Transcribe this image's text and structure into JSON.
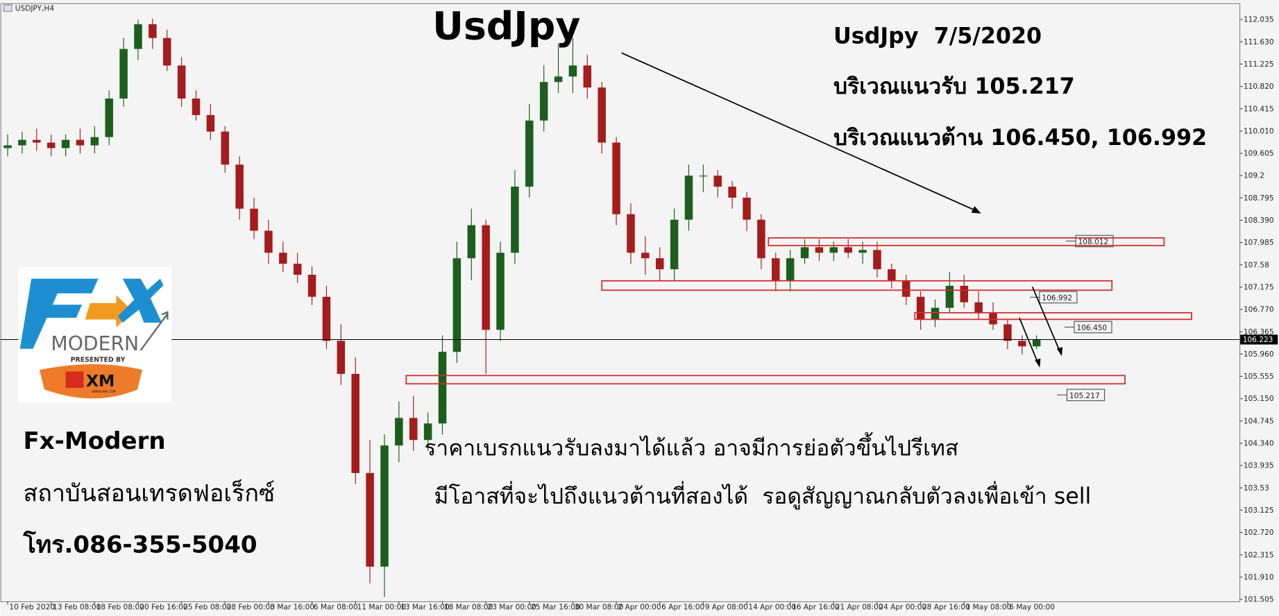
{
  "chart_data": {
    "type": "candlestick",
    "symbol": "USDJPY,H4",
    "title": "UsdJpy",
    "categories": [
      "10 Feb 2020",
      null,
      null,
      "13 Feb 08:00",
      null,
      null,
      "18 Feb 08:00",
      null,
      null,
      "20 Feb 16:00",
      null,
      null,
      "25 Feb 08:00",
      null,
      null,
      "28 Feb 00:00",
      null,
      null,
      "3 Mar 16:00",
      null,
      null,
      "6 Mar 08:00",
      null,
      null,
      "11 Mar 00:00",
      null,
      null,
      "13 Mar 16:00",
      null,
      null,
      "18 Mar 08:00",
      null,
      null,
      "23 Mar 00:00",
      null,
      null,
      "25 Mar 16:00",
      null,
      null,
      "30 Mar 08:00",
      null,
      null,
      "2 Apr 00:00",
      null,
      null,
      "6 Apr 16:00",
      null,
      null,
      "9 Apr 08:00",
      null,
      null,
      "14 Apr 00:00",
      null,
      null,
      "16 Apr 16:00",
      null,
      null,
      "21 Apr 08:00",
      null,
      null,
      "24 Apr 00:00",
      null,
      null,
      "28 Apr 16:00",
      null,
      null,
      "1 May 08:00",
      null,
      null,
      "6 May 00:00",
      null,
      null
    ],
    "open": [
      109.7,
      109.75,
      109.85,
      109.8,
      109.7,
      109.85,
      109.75,
      109.9,
      110.6,
      111.5,
      111.95,
      111.7,
      111.2,
      110.6,
      110.3,
      110.0,
      109.4,
      108.6,
      108.2,
      107.8,
      107.6,
      107.4,
      107.0,
      106.2,
      105.6,
      103.8,
      102.1,
      104.3,
      104.8,
      104.4,
      104.7,
      106.0,
      107.7,
      108.3,
      106.4,
      107.8,
      109.0,
      110.2,
      110.9,
      111.0,
      111.2,
      110.8,
      109.8,
      108.5,
      107.8,
      107.7,
      107.5,
      108.4,
      109.2,
      109.2,
      109.0,
      108.8,
      108.4,
      107.7,
      107.3,
      107.7,
      107.9,
      107.8,
      107.9,
      107.8,
      107.85,
      107.5,
      107.3,
      107.0,
      106.6,
      106.8,
      107.2,
      106.9,
      106.7,
      106.5,
      106.2,
      106.1
    ],
    "high": [
      109.95,
      110.0,
      110.05,
      109.95,
      109.95,
      110.05,
      110.1,
      110.75,
      111.7,
      112.03,
      112.05,
      111.85,
      111.35,
      110.75,
      110.5,
      110.1,
      109.55,
      108.8,
      108.4,
      108.0,
      107.8,
      107.55,
      107.2,
      106.5,
      105.9,
      104.4,
      104.5,
      105.1,
      105.2,
      104.9,
      106.3,
      108.0,
      108.6,
      108.4,
      108.0,
      109.3,
      110.5,
      111.2,
      111.6,
      111.7,
      111.4,
      110.9,
      109.9,
      108.7,
      108.1,
      107.9,
      108.6,
      109.4,
      109.4,
      109.3,
      109.1,
      108.9,
      108.5,
      107.8,
      107.85,
      108.05,
      108.05,
      108.0,
      108.05,
      108.0,
      108.0,
      107.6,
      107.4,
      107.1,
      106.95,
      107.45,
      107.4,
      107.1,
      106.9,
      106.6,
      106.3,
      106.3
    ],
    "low": [
      109.55,
      109.6,
      109.65,
      109.55,
      109.55,
      109.6,
      109.6,
      109.75,
      110.45,
      111.3,
      111.5,
      111.1,
      110.45,
      110.2,
      109.85,
      109.25,
      108.4,
      108.05,
      107.6,
      107.45,
      107.25,
      106.85,
      106.05,
      105.4,
      103.6,
      101.8,
      101.55,
      104.0,
      104.2,
      104.2,
      104.5,
      105.8,
      107.3,
      105.6,
      106.2,
      107.6,
      108.8,
      110.0,
      110.7,
      110.7,
      110.6,
      109.6,
      108.3,
      107.6,
      107.4,
      107.3,
      107.3,
      108.2,
      108.9,
      108.8,
      108.6,
      108.2,
      107.5,
      107.1,
      107.1,
      107.6,
      107.65,
      107.65,
      107.7,
      107.6,
      107.35,
      107.15,
      106.85,
      106.4,
      106.45,
      106.7,
      106.8,
      106.6,
      106.4,
      106.05,
      105.95,
      106.05
    ],
    "close": [
      109.75,
      109.85,
      109.8,
      109.7,
      109.85,
      109.75,
      109.9,
      110.6,
      111.5,
      111.95,
      111.7,
      111.2,
      110.6,
      110.3,
      110.0,
      109.4,
      108.6,
      108.2,
      107.8,
      107.6,
      107.4,
      107.0,
      106.2,
      105.6,
      103.8,
      102.1,
      104.3,
      104.8,
      104.4,
      104.7,
      106.0,
      107.7,
      108.3,
      106.4,
      107.8,
      109.0,
      110.2,
      110.9,
      111.0,
      111.2,
      110.8,
      109.8,
      108.5,
      107.8,
      107.7,
      107.5,
      108.4,
      109.2,
      109.2,
      109.0,
      108.8,
      108.4,
      107.7,
      107.3,
      107.7,
      107.9,
      107.8,
      107.9,
      107.8,
      107.85,
      107.5,
      107.3,
      107.0,
      106.6,
      106.8,
      107.2,
      106.9,
      106.7,
      106.5,
      106.2,
      106.1,
      106.22
    ],
    "up_color": "#1d5e1d",
    "down_color": "#a51c1c",
    "zone_color": "#d42a2a",
    "xlim": [
      -0.5,
      85
    ],
    "ylim": [
      101.47,
      112.33
    ],
    "yticks": [
      112.035,
      {
        "value": 111.63,
        "label": "111.630"
      },
      111.225,
      {
        "value": 110.82,
        "label": "110.820"
      },
      110.415,
      {
        "value": 110.01,
        "label": "110.010"
      },
      109.605,
      109.2,
      108.795,
      {
        "value": 108.39,
        "label": "108.390"
      },
      107.985,
      107.58,
      107.175,
      {
        "value": 106.77,
        "label": "106.770"
      },
      106.365,
      {
        "value": 105.96,
        "label": "105.960"
      },
      105.555,
      {
        "value": 105.15,
        "label": "105.150"
      },
      104.745,
      {
        "value": 104.34,
        "label": "104.340"
      },
      103.935,
      103.53,
      103.125,
      {
        "value": 102.72,
        "label": "102.720"
      },
      102.315,
      {
        "value": 101.91,
        "label": "101.910"
      },
      101.505
    ],
    "current_price": 106.223,
    "zones": [
      {
        "level": 108.012,
        "top": 108.07,
        "bottom": 107.93,
        "from": 52.5,
        "to": 79.8,
        "label_at": 73.7
      },
      {
        "level": 106.992,
        "top": 107.29,
        "bottom": 107.12,
        "from": 41,
        "to": 76.2,
        "label_at": 71.2
      },
      {
        "level": {
          "value": 106.45,
          "label": "106.450"
        },
        "top": 106.71,
        "bottom": 106.59,
        "from": 62.6,
        "to": 81.7,
        "label_at": 73.6
      },
      {
        "level": 105.217,
        "top": 105.57,
        "bottom": 105.42,
        "from": 27.5,
        "to": 77.1,
        "label_at": 73.1
      }
    ]
  },
  "annotations": {
    "heading": "UsdJpy  7/5/2020",
    "support": "บริเวณแนวรับ 105.217",
    "resistance": "บริเวณแนวต้าน 106.450, 106.992",
    "comment": [
      "ราคาเบรกแนวรับลงมาได้แล้ว อาจมีการย่อตัวขึ้นไปรีเทส",
      "มีโอาสที่จะไปถึงแนวต้านที่สองได้  รอดูสัญญาณกลับตัวลงเพื่อเข้า sell"
    ],
    "brand": "Fx-Modern",
    "institute": "สถาบันสอนเทรดฟอเร็กซ์",
    "phone": "โทร.086-355-5040"
  },
  "logo": {
    "mark": "FX",
    "name": "MODERN",
    "presented": "PRESENTED BY",
    "sponsor": "XM",
    "url": "WWW.XM.COM"
  }
}
